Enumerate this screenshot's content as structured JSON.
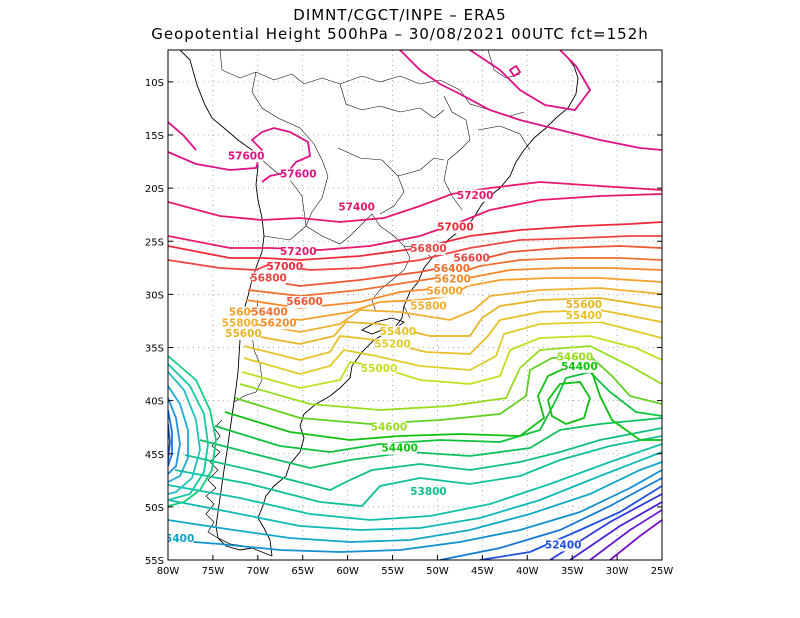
{
  "title": {
    "line1": "DIMNT/CGCT/INPE –  ERA5",
    "line2": "Geopotential Height 500hPa –  30/08/2021 00UTC fct=152h"
  },
  "map": {
    "lon_range": [
      -80,
      -25
    ],
    "lat_range": [
      -55,
      -7
    ],
    "lon_ticks": [
      {
        "value": -80,
        "label": "80W"
      },
      {
        "value": -75,
        "label": "75W"
      },
      {
        "value": -70,
        "label": "70W"
      },
      {
        "value": -65,
        "label": "65W"
      },
      {
        "value": -60,
        "label": "60W"
      },
      {
        "value": -55,
        "label": "55W"
      },
      {
        "value": -50,
        "label": "50W"
      },
      {
        "value": -45,
        "label": "45W"
      },
      {
        "value": -40,
        "label": "40W"
      },
      {
        "value": -35,
        "label": "35W"
      },
      {
        "value": -30,
        "label": "30W"
      },
      {
        "value": -25,
        "label": "25W"
      }
    ],
    "lat_ticks": [
      {
        "value": -10,
        "label": "10S"
      },
      {
        "value": -15,
        "label": "15S"
      },
      {
        "value": -20,
        "label": "20S"
      },
      {
        "value": -25,
        "label": "25S"
      },
      {
        "value": -30,
        "label": "30S"
      },
      {
        "value": -35,
        "label": "35S"
      },
      {
        "value": -40,
        "label": "40S"
      },
      {
        "value": -45,
        "label": "45S"
      },
      {
        "value": -50,
        "label": "50S"
      },
      {
        "value": -55,
        "label": "55S"
      }
    ],
    "contour_labels": [
      {
        "text": "57600",
        "lon": -71.3,
        "lat": -17.3,
        "color": "#dd1188"
      },
      {
        "text": "57600",
        "lon": -65.5,
        "lat": -19.0,
        "color": "#dd1188"
      },
      {
        "text": "57400",
        "lon": -59.0,
        "lat": -22.1,
        "color": "#e8186e"
      },
      {
        "text": "57200",
        "lon": -45.8,
        "lat": -21.0,
        "color": "#e8186e"
      },
      {
        "text": "57200",
        "lon": -65.5,
        "lat": -26.3,
        "color": "#e8186e"
      },
      {
        "text": "57000",
        "lon": -48.0,
        "lat": -24.0,
        "color": "#ee2a3a"
      },
      {
        "text": "57000",
        "lon": -67.0,
        "lat": -27.7,
        "color": "#ee2a3a"
      },
      {
        "text": "56800",
        "lon": -51.0,
        "lat": -26.0,
        "color": "#ee4444"
      },
      {
        "text": "56800",
        "lon": -68.8,
        "lat": -28.8,
        "color": "#ee4444"
      },
      {
        "text": "56600",
        "lon": -46.2,
        "lat": -26.9,
        "color": "#ee4444"
      },
      {
        "text": "56600",
        "lon": -64.8,
        "lat": -31.0,
        "color": "#ee5533"
      },
      {
        "text": "56400",
        "lon": -48.4,
        "lat": -27.9,
        "color": "#f07030"
      },
      {
        "text": "56400",
        "lon": -68.7,
        "lat": -32.0,
        "color": "#f07030"
      },
      {
        "text": "56200",
        "lon": -48.3,
        "lat": -28.9,
        "color": "#f58a2a"
      },
      {
        "text": "56200",
        "lon": -67.7,
        "lat": -33.0,
        "color": "#f58a2a"
      },
      {
        "text": "56000",
        "lon": -49.2,
        "lat": -30.0,
        "color": "#f5a02a"
      },
      {
        "text": "560",
        "lon": -72.0,
        "lat": -32.0,
        "color": "#f5a02a"
      },
      {
        "text": "55800",
        "lon": -51.0,
        "lat": -31.4,
        "color": "#f0b030"
      },
      {
        "text": "55800",
        "lon": -72.0,
        "lat": -33.0,
        "color": "#f0b030"
      },
      {
        "text": "55600",
        "lon": -71.6,
        "lat": -34.0,
        "color": "#e8b428"
      },
      {
        "text": "55600",
        "lon": -33.7,
        "lat": -31.3,
        "color": "#e8b428"
      },
      {
        "text": "55400",
        "lon": -54.4,
        "lat": -33.8,
        "color": "#e8c028"
      },
      {
        "text": "55400",
        "lon": -33.7,
        "lat": -32.3,
        "color": "#e8c028"
      },
      {
        "text": "55200",
        "lon": -55.0,
        "lat": -35.0,
        "color": "#e0cc28"
      },
      {
        "text": "55000",
        "lon": -56.5,
        "lat": -37.3,
        "color": "#c8dc20"
      },
      {
        "text": "54600",
        "lon": -55.4,
        "lat": -42.8,
        "color": "#98dc20"
      },
      {
        "text": "54600",
        "lon": -34.7,
        "lat": -36.2,
        "color": "#98dc20"
      },
      {
        "text": "54400",
        "lon": -54.2,
        "lat": -44.8,
        "color": "#10c010"
      },
      {
        "text": "54400",
        "lon": -34.2,
        "lat": -37.1,
        "color": "#10c010"
      },
      {
        "text": "53800",
        "lon": -51.0,
        "lat": -48.9,
        "color": "#10c090"
      },
      {
        "text": "52400",
        "lon": -36.0,
        "lat": -53.9,
        "color": "#2050e0"
      },
      {
        "text": "5400",
        "lon": -78.7,
        "lat": -53.3,
        "color": "#10a0c0"
      }
    ]
  }
}
